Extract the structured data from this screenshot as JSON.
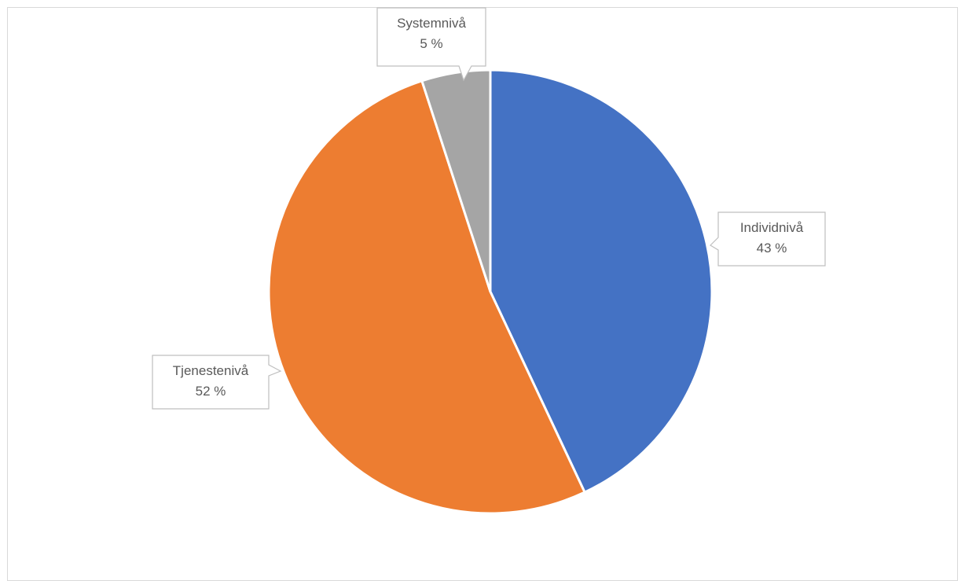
{
  "chart_data": {
    "type": "pie",
    "title": "",
    "slices": [
      {
        "label": "Individnivå",
        "value": 43,
        "value_label": "43 %",
        "color": "#4472C4"
      },
      {
        "label": "Tjenestenivå",
        "value": 52,
        "value_label": "52 %",
        "color": "#ED7D31"
      },
      {
        "label": "Systemnivå",
        "value": 5,
        "value_label": "5 %",
        "color": "#A5A5A5"
      }
    ],
    "start_angle": "12 o'clock",
    "direction": "clockwise",
    "legend": "none",
    "data_labels": "callouts"
  }
}
